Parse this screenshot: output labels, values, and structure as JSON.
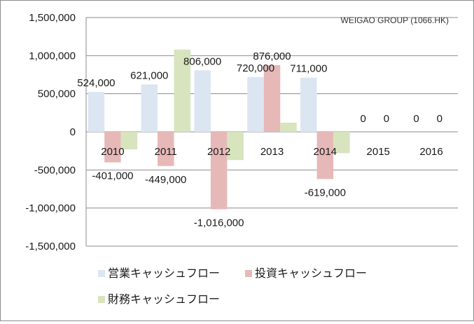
{
  "chart_data": {
    "type": "bar",
    "annotation": "WEIGAO GROUP (1066.HK)",
    "categories": [
      "2010",
      "2011",
      "2012",
      "2013",
      "2014",
      "2015",
      "2016"
    ],
    "ylim": [
      -1500000,
      1500000
    ],
    "yticks": [
      1500000,
      1000000,
      500000,
      0,
      -500000,
      -1000000,
      -1500000
    ],
    "ytick_labels": [
      "1,500,000",
      "1,000,000",
      "500,000",
      "0",
      "-500,000",
      "-1,000,000",
      "-1,500,000"
    ],
    "grid": true,
    "legend_position": "bottom",
    "series": [
      {
        "name": "営業キャッシュフロー",
        "color": "#dce6f2",
        "values": [
          524000,
          621000,
          806000,
          720000,
          711000,
          0,
          0
        ],
        "labels": [
          "524,000",
          "621,000",
          "806,000",
          "720,000",
          "711,000",
          "0",
          "0"
        ]
      },
      {
        "name": "投資キャッシュフロー",
        "color": "#e6b9b8",
        "values": [
          -401000,
          -449000,
          -1016000,
          876000,
          -619000,
          null,
          null
        ],
        "labels": [
          "-401,000",
          "-449,000",
          "-1,016,000",
          "876,000",
          "-619,000",
          "0",
          "0"
        ]
      },
      {
        "name": "財務キャッシュフロー",
        "color": "#d7e4bd",
        "values": [
          -230000,
          1080000,
          -370000,
          120000,
          -280000,
          null,
          null
        ],
        "labels": []
      }
    ]
  }
}
